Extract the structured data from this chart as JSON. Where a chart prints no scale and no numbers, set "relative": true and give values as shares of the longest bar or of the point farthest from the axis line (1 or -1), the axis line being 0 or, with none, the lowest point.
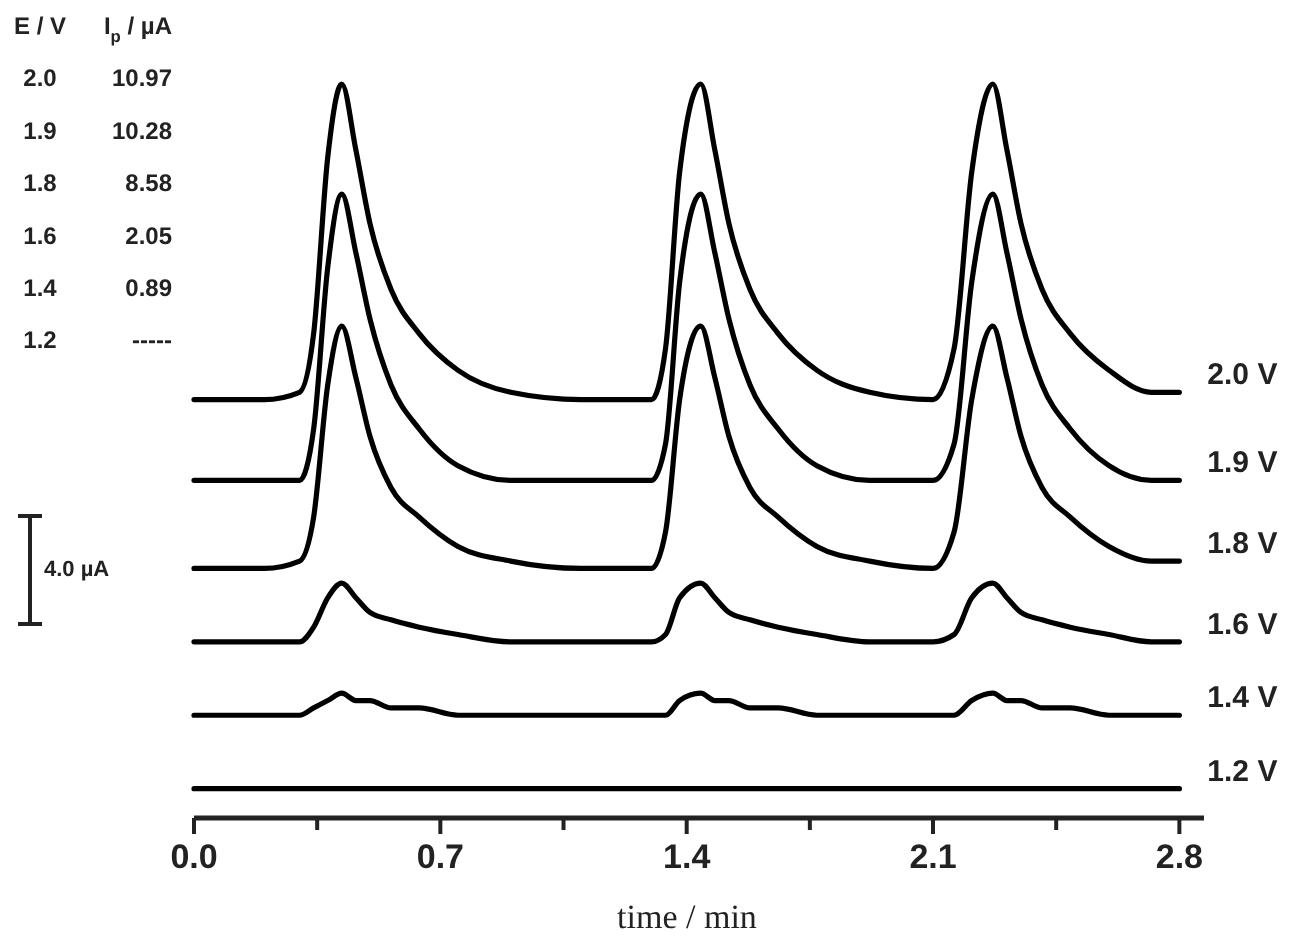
{
  "chart_data": {
    "type": "line",
    "relative": true,
    "xlabel": "time / min",
    "legend": false,
    "marker": "none",
    "line_style": "solid",
    "xlim": [
      0,
      2.87
    ],
    "xticks": [
      {
        "value": 0,
        "label": "0.0"
      },
      {
        "value": 0.35,
        "label": null
      },
      0.7,
      {
        "value": 1.05,
        "label": null
      },
      1.4,
      {
        "value": 1.75,
        "label": null
      },
      2.1,
      {
        "value": 2.45,
        "label": null
      },
      2.8
    ],
    "x": [
      0,
      0.1,
      0.2,
      0.3,
      0.34,
      0.38,
      0.42,
      0.46,
      0.5,
      0.56,
      0.64,
      0.75,
      0.9,
      1.1,
      1.3,
      1.34,
      1.38,
      1.44,
      1.48,
      1.52,
      1.58,
      1.66,
      1.77,
      1.92,
      2.1,
      2.16,
      2.21,
      2.27,
      2.31,
      2.35,
      2.41,
      2.49,
      2.6,
      2.72,
      2.8
    ],
    "series": [
      {
        "name": "2.0 V",
        "color": "#000000",
        "values": [
          0.57,
          0.57,
          0.57,
          0.58,
          0.66,
          0.9,
          1,
          0.91,
          0.81,
          0.72,
          0.66,
          0.61,
          0.58,
          0.57,
          0.57,
          0.64,
          0.88,
          1,
          0.91,
          0.81,
          0.72,
          0.66,
          0.61,
          0.58,
          0.57,
          0.64,
          0.88,
          1,
          0.91,
          0.81,
          0.72,
          0.66,
          0.61,
          0.58,
          0.58
        ]
      },
      {
        "name": "1.9 V",
        "color": "#000000",
        "values": [
          0.46,
          0.46,
          0.46,
          0.46,
          0.53,
          0.75,
          0.85,
          0.77,
          0.68,
          0.59,
          0.53,
          0.48,
          0.46,
          0.46,
          0.46,
          0.51,
          0.73,
          0.85,
          0.77,
          0.68,
          0.59,
          0.53,
          0.48,
          0.46,
          0.46,
          0.51,
          0.73,
          0.85,
          0.77,
          0.68,
          0.59,
          0.53,
          0.48,
          0.46,
          0.46
        ]
      },
      {
        "name": "1.8 V",
        "color": "#000000",
        "values": [
          0.34,
          0.34,
          0.34,
          0.35,
          0.41,
          0.59,
          0.67,
          0.6,
          0.52,
          0.45,
          0.41,
          0.37,
          0.35,
          0.34,
          0.34,
          0.39,
          0.57,
          0.67,
          0.6,
          0.52,
          0.45,
          0.41,
          0.37,
          0.35,
          0.34,
          0.39,
          0.57,
          0.67,
          0.6,
          0.52,
          0.45,
          0.41,
          0.37,
          0.35,
          0.35
        ]
      },
      {
        "name": "1.6 V",
        "color": "#000000",
        "values": [
          0.24,
          0.24,
          0.24,
          0.24,
          0.26,
          0.3,
          0.32,
          0.3,
          0.28,
          0.27,
          0.26,
          0.25,
          0.24,
          0.24,
          0.24,
          0.25,
          0.3,
          0.32,
          0.3,
          0.28,
          0.27,
          0.26,
          0.25,
          0.24,
          0.24,
          0.25,
          0.3,
          0.32,
          0.3,
          0.28,
          0.27,
          0.26,
          0.25,
          0.24,
          0.24
        ]
      },
      {
        "name": "1.4 V",
        "color": "#000000",
        "values": [
          0.14,
          0.14,
          0.14,
          0.14,
          0.15,
          0.16,
          0.17,
          0.16,
          0.16,
          0.15,
          0.15,
          0.14,
          0.14,
          0.14,
          0.14,
          0.14,
          0.16,
          0.17,
          0.16,
          0.16,
          0.15,
          0.15,
          0.14,
          0.14,
          0.14,
          0.14,
          0.16,
          0.17,
          0.16,
          0.16,
          0.15,
          0.15,
          0.14,
          0.14,
          0.14
        ]
      },
      {
        "name": "1.2 V",
        "color": "#000000",
        "values": [
          0.04,
          0.04,
          0.04,
          0.04,
          0.04,
          0.04,
          0.04,
          0.04,
          0.04,
          0.04,
          0.04,
          0.04,
          0.04,
          0.04,
          0.04,
          0.04,
          0.04,
          0.04,
          0.04,
          0.04,
          0.04,
          0.04,
          0.04,
          0.04,
          0.04,
          0.04,
          0.04,
          0.04,
          0.04,
          0.04,
          0.04,
          0.04,
          0.04,
          0.04,
          0.04
        ]
      }
    ],
    "annotations": [
      "E / V",
      "I$_{p}$ / µA",
      "2.0",
      "10.97",
      "1.9",
      "10.28",
      "1.8",
      "8.58",
      "1.6",
      "2.05",
      "1.4",
      "0.89",
      "1.2",
      "-----",
      "4.0 µA"
    ]
  }
}
